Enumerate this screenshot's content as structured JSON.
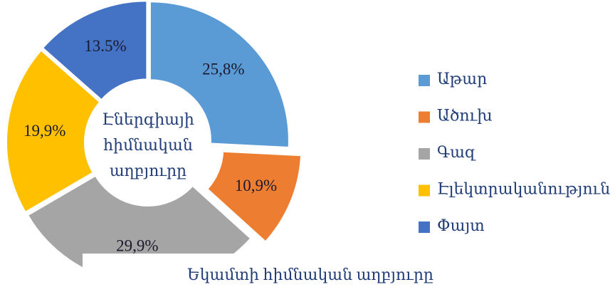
{
  "chart_data": {
    "type": "donut",
    "title": "Եկամտի հիմնական աղբյուրը",
    "center_label": "Էներգիայի հիմնական աղբյուրը",
    "categories": [
      "Աթար",
      "Ածուխ",
      "Գազ",
      "Էլեկտրականություն",
      "Փայտ"
    ],
    "values": [
      25.8,
      10.9,
      29.9,
      19.9,
      13.5
    ],
    "value_labels": [
      "25,8%",
      "10,9%",
      "29,9%",
      "19,9%",
      "13.5%"
    ],
    "colors": [
      "#5b9bd5",
      "#ed7d31",
      "#a5a5a5",
      "#ffc000",
      "#4472c4"
    ],
    "legend": "right"
  }
}
